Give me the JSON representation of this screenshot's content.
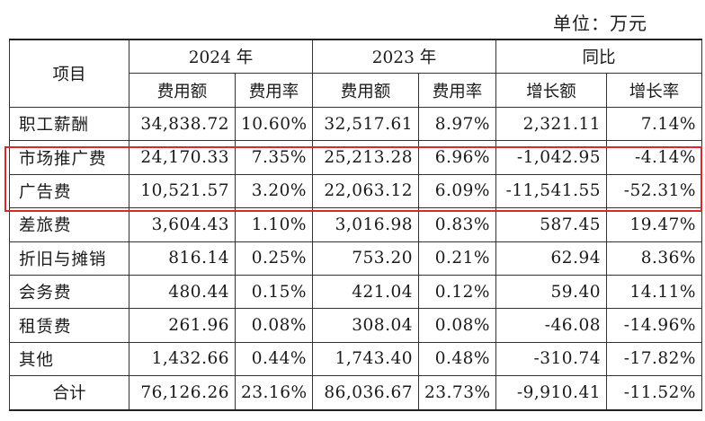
{
  "unit_label": "单位：万元",
  "headers": {
    "item": "项目",
    "years": [
      "2024 年",
      "2023 年"
    ],
    "yoy": "同比",
    "sub": [
      "费用额",
      "费用率",
      "费用额",
      "费用率",
      "增长额",
      "增长率"
    ]
  },
  "rows": [
    {
      "name": "职工薪酬",
      "cells": [
        "34,838.72",
        "10.60%",
        "32,517.61",
        "8.97%",
        "2,321.11",
        "7.14%"
      ]
    },
    {
      "name": "市场推广费",
      "cells": [
        "24,170.33",
        "7.35%",
        "25,213.28",
        "6.96%",
        "-1,042.95",
        "-4.14%"
      ]
    },
    {
      "name": "广告费",
      "cells": [
        "10,521.57",
        "3.20%",
        "22,063.12",
        "6.09%",
        "-11,541.55",
        "-52.31%"
      ]
    },
    {
      "name": "差旅费",
      "cells": [
        "3,604.43",
        "1.10%",
        "3,016.98",
        "0.83%",
        "587.45",
        "19.47%"
      ]
    },
    {
      "name": "折旧与摊销",
      "cells": [
        "816.14",
        "0.25%",
        "753.20",
        "0.21%",
        "62.94",
        "8.36%"
      ]
    },
    {
      "name": "会务费",
      "cells": [
        "480.44",
        "0.15%",
        "421.04",
        "0.12%",
        "59.40",
        "14.11%"
      ]
    },
    {
      "name": "租赁费",
      "cells": [
        "261.96",
        "0.08%",
        "308.04",
        "0.08%",
        "-46.08",
        "-14.96%"
      ]
    },
    {
      "name": "其他",
      "cells": [
        "1,432.66",
        "0.44%",
        "1,743.40",
        "0.48%",
        "-310.74",
        "-17.82%"
      ]
    }
  ],
  "total": {
    "name": "合计",
    "cells": [
      "76,126.26",
      "23.16%",
      "86,036.67",
      "23.73%",
      "-9,910.41",
      "-11.52%"
    ]
  },
  "colors": {
    "highlight": "#d9262f",
    "text": "#1a1a1a",
    "border": "#333333"
  }
}
